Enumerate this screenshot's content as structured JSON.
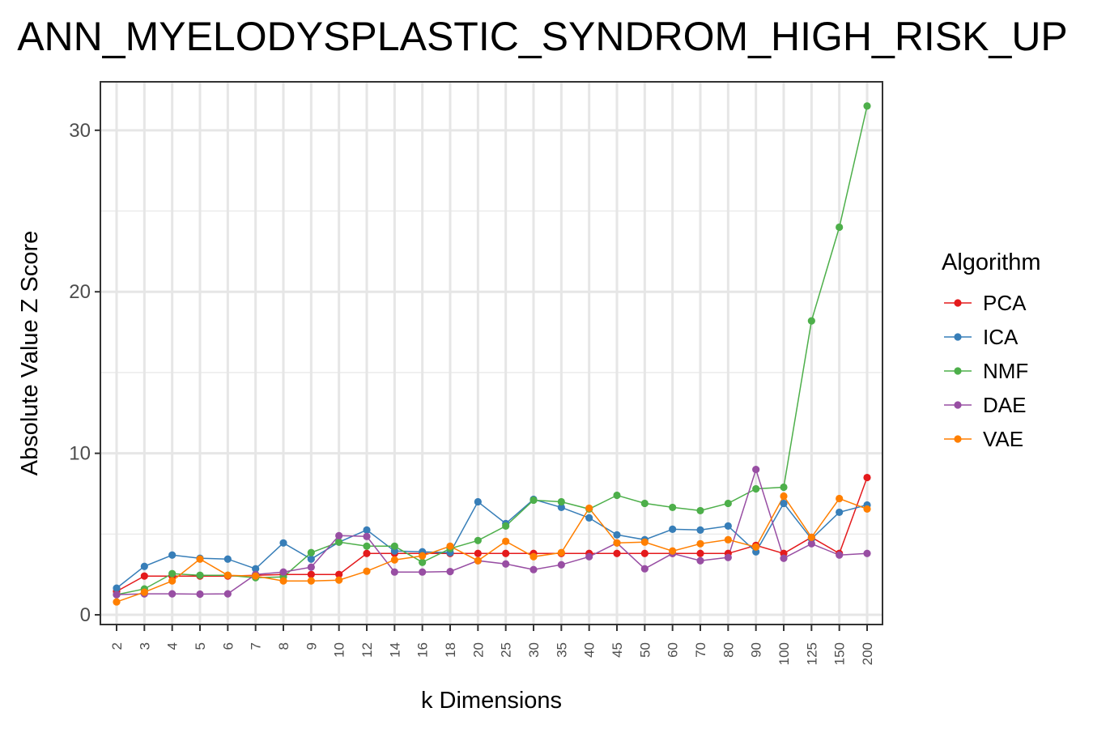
{
  "chart_data": {
    "type": "line",
    "title": "ANN_MYELODYSPLASTIC_SYNDROM_HIGH_RISK_UP",
    "xlabel": "k Dimensions",
    "ylabel": "Absolute Value Z Score",
    "categories": [
      "2",
      "3",
      "4",
      "5",
      "6",
      "7",
      "8",
      "9",
      "10",
      "12",
      "14",
      "16",
      "18",
      "20",
      "25",
      "30",
      "35",
      "40",
      "45",
      "50",
      "60",
      "70",
      "80",
      "90",
      "100",
      "125",
      "150",
      "200"
    ],
    "ylim": [
      -0.6,
      33
    ],
    "yticks": [
      0,
      10,
      20,
      30
    ],
    "grid": true,
    "legend": {
      "title": "Algorithm",
      "position": "right"
    },
    "series": [
      {
        "name": "PCA",
        "color": "#e41a1c",
        "values": [
          1.45,
          2.4,
          2.4,
          2.4,
          2.4,
          2.45,
          2.5,
          2.5,
          2.5,
          3.8,
          3.8,
          3.8,
          3.8,
          3.8,
          3.8,
          3.8,
          3.8,
          3.8,
          3.8,
          3.8,
          3.8,
          3.8,
          3.8,
          4.3,
          3.8,
          4.8,
          3.8,
          8.5
        ]
      },
      {
        "name": "ICA",
        "color": "#377eb8",
        "values": [
          1.65,
          3.0,
          3.7,
          3.5,
          3.45,
          2.85,
          4.45,
          3.45,
          4.5,
          5.25,
          3.95,
          3.9,
          3.85,
          7.0,
          5.65,
          7.15,
          6.65,
          6.0,
          4.95,
          4.65,
          5.3,
          5.25,
          5.5,
          3.9,
          6.9,
          4.7,
          6.35,
          6.8
        ]
      },
      {
        "name": "NMF",
        "color": "#4daf4a",
        "values": [
          1.25,
          1.6,
          2.55,
          2.45,
          2.45,
          2.3,
          2.35,
          3.85,
          4.5,
          4.25,
          4.25,
          3.25,
          4.1,
          4.6,
          5.5,
          7.1,
          7.0,
          6.55,
          7.4,
          6.9,
          6.65,
          6.45,
          6.9,
          7.8,
          7.9,
          18.2,
          24.0,
          31.5
        ]
      },
      {
        "name": "DAE",
        "color": "#984ea3",
        "values": [
          1.25,
          1.3,
          1.3,
          1.28,
          1.3,
          2.5,
          2.65,
          2.95,
          4.9,
          4.85,
          2.65,
          2.65,
          2.68,
          3.35,
          3.15,
          2.8,
          3.1,
          3.6,
          4.45,
          2.85,
          3.8,
          3.35,
          3.55,
          9.0,
          3.5,
          4.4,
          3.7,
          3.8
        ]
      },
      {
        "name": "VAE",
        "color": "#ff7f00",
        "values": [
          0.8,
          1.4,
          2.1,
          3.45,
          2.45,
          2.4,
          2.1,
          2.1,
          2.15,
          2.7,
          3.4,
          3.65,
          4.25,
          3.35,
          4.55,
          3.6,
          3.85,
          6.6,
          4.45,
          4.5,
          3.95,
          4.4,
          4.65,
          4.2,
          7.35,
          4.8,
          7.2,
          6.55
        ]
      }
    ]
  }
}
